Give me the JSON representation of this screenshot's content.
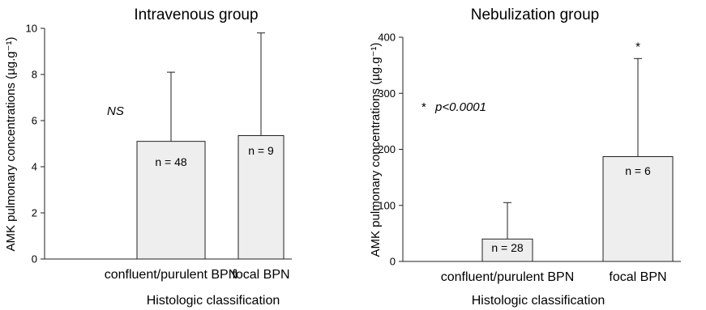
{
  "chart_data": [
    {
      "type": "bar",
      "title": "Intravenous group",
      "xlabel": "Histologic classification",
      "ylabel": "AMK pulmonary concentrations (µg.g⁻¹)",
      "categories": [
        "confluent/purulent BPN",
        "focal BPN"
      ],
      "values": [
        5.1,
        5.35
      ],
      "error_upper": [
        8.1,
        9.8
      ],
      "bar_labels": [
        "n = 48",
        "n = 9"
      ],
      "ylim": [
        0,
        10
      ],
      "yticks": [
        0,
        2,
        4,
        6,
        8,
        10
      ],
      "annotations": [
        {
          "text": "NS",
          "italic": true
        }
      ],
      "bar_color": "#eeeeee"
    },
    {
      "type": "bar",
      "title": "Nebulization group",
      "xlabel": "Histologic classification",
      "ylabel": "AMK pulmonary concentrations (µg.g⁻¹)",
      "categories": [
        "confluent/purulent BPN",
        "focal BPN"
      ],
      "values": [
        40,
        187
      ],
      "error_upper": [
        105,
        362
      ],
      "bar_labels": [
        "n = 28",
        "n = 6"
      ],
      "ylim": [
        0,
        400
      ],
      "yticks": [
        0,
        100,
        200,
        300,
        400
      ],
      "annotations": [
        {
          "text": "*",
          "italic": false
        },
        {
          "text": "p<0.0001",
          "italic": true
        }
      ],
      "significance_markers": [
        "",
        "*"
      ],
      "bar_color": "#eeeeee"
    }
  ]
}
